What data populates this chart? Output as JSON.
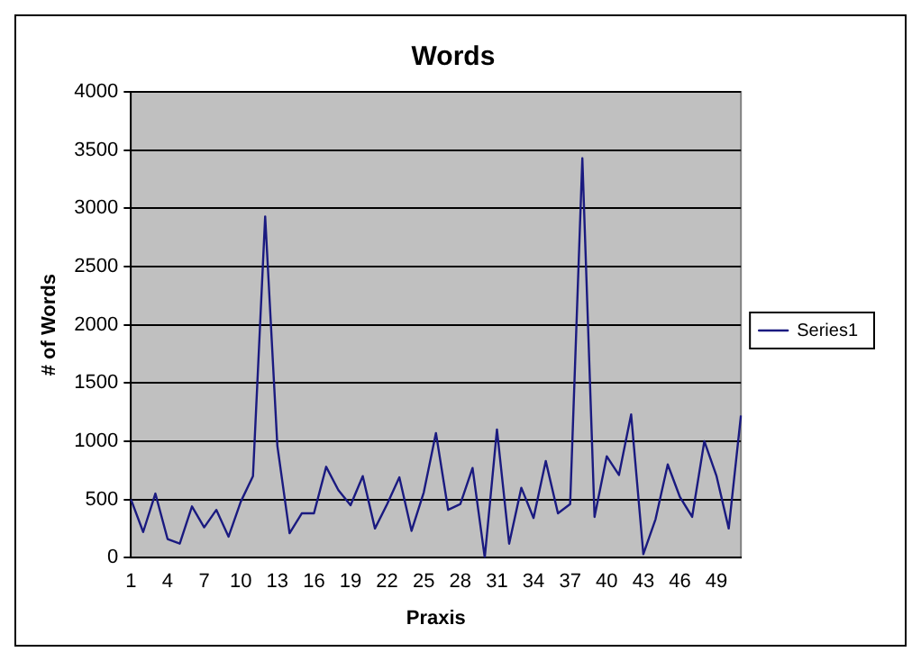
{
  "chart_data": {
    "type": "line",
    "title": "Words",
    "xlabel": "Praxis",
    "ylabel": "# of Words",
    "categories": [
      "1",
      null,
      null,
      "4",
      null,
      null,
      "7",
      null,
      null,
      "10",
      null,
      null,
      "13",
      null,
      null,
      "16",
      null,
      null,
      "19",
      null,
      null,
      "22",
      null,
      null,
      "25",
      null,
      null,
      "28",
      null,
      null,
      "31",
      null,
      null,
      "34",
      null,
      null,
      "37",
      null,
      null,
      "40",
      null,
      null,
      "43",
      null,
      null,
      "46",
      null,
      null,
      "49",
      null,
      null
    ],
    "series": [
      {
        "name": "Series1",
        "color": "#1a1a80",
        "values": [
          500,
          220,
          550,
          160,
          120,
          440,
          260,
          410,
          180,
          480,
          700,
          2930,
          960,
          210,
          380,
          380,
          780,
          580,
          450,
          700,
          250,
          460,
          690,
          230,
          560,
          1070,
          410,
          460,
          770,
          0,
          1100,
          120,
          600,
          340,
          830,
          380,
          460,
          3430,
          350,
          870,
          710,
          1230,
          30,
          330,
          800,
          520,
          350,
          1000,
          700,
          250,
          1220
        ]
      }
    ],
    "ylim": [
      0,
      4000
    ],
    "yticks": [
      0,
      500,
      1000,
      1500,
      2000,
      2500,
      3000,
      3500,
      4000
    ],
    "grid": "y",
    "legend": "right",
    "marker": "none",
    "line_style": "solid"
  }
}
